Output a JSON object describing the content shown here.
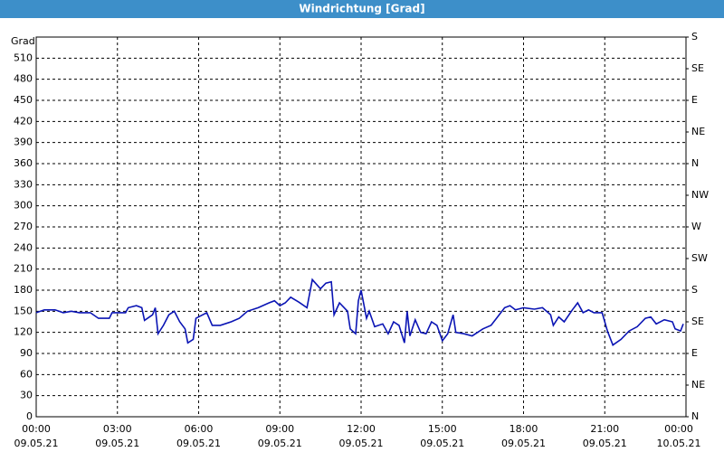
{
  "chart_data": {
    "type": "line",
    "title": "Windrichtung [Grad]",
    "ylabel": "Grad",
    "x": [
      0,
      0.3,
      0.7,
      1,
      1.3,
      1.6,
      2,
      2.3,
      2.7,
      2.8,
      3.1,
      3.3,
      3.4,
      3.7,
      3.9,
      4.0,
      4.3,
      4.4,
      4.5,
      4.7,
      4.9,
      5.1,
      5.3,
      5.5,
      5.6,
      5.8,
      5.9,
      6.3,
      6.5,
      6.8,
      7.2,
      7.5,
      7.8,
      8.2,
      8.6,
      8.8,
      9.0,
      9.2,
      9.4,
      9.7,
      10.0,
      10.2,
      10.5,
      10.7,
      10.9,
      11.0,
      11.2,
      11.5,
      11.6,
      11.8,
      11.9,
      12.0,
      12.2,
      12.3,
      12.5,
      12.8,
      13.0,
      13.2,
      13.4,
      13.6,
      13.7,
      13.8,
      14.0,
      14.2,
      14.4,
      14.6,
      14.8,
      15.0,
      15.2,
      15.4,
      15.5,
      15.8,
      16.1,
      16.5,
      16.8,
      17.0,
      17.3,
      17.5,
      17.7,
      18.0,
      18.4,
      18.7,
      19.0,
      19.1,
      19.3,
      19.5,
      19.8,
      20.0,
      20.2,
      20.4,
      20.6,
      20.9,
      21.1,
      21.3,
      21.6,
      21.9,
      22.2,
      22.5,
      22.7,
      22.9,
      23.2,
      23.5,
      23.6,
      23.8,
      23.9
    ],
    "series": [
      {
        "name": "Windrichtung",
        "color": "#0a14b4",
        "values": [
          148,
          152,
          152,
          148,
          150,
          148,
          148,
          140,
          140,
          148,
          148,
          148,
          155,
          158,
          155,
          137,
          145,
          155,
          118,
          130,
          145,
          150,
          135,
          125,
          105,
          110,
          140,
          148,
          130,
          130,
          135,
          140,
          150,
          155,
          162,
          165,
          158,
          162,
          170,
          163,
          155,
          195,
          182,
          190,
          192,
          145,
          162,
          150,
          125,
          118,
          165,
          180,
          140,
          150,
          128,
          132,
          118,
          135,
          130,
          105,
          150,
          115,
          138,
          120,
          118,
          135,
          130,
          108,
          118,
          145,
          120,
          118,
          115,
          125,
          130,
          140,
          155,
          158,
          152,
          155,
          153,
          155,
          145,
          130,
          142,
          135,
          152,
          162,
          148,
          152,
          148,
          148,
          122,
          102,
          110,
          122,
          128,
          140,
          142,
          132,
          138,
          135,
          125,
          122,
          132
        ]
      }
    ],
    "xlim": [
      0,
      24
    ],
    "xticks": [
      {
        "value": 0,
        "label": "00:00"
      },
      {
        "value": 3,
        "label": "03:00"
      },
      {
        "value": 6,
        "label": "06:00"
      },
      {
        "value": 9,
        "label": "09:00"
      },
      {
        "value": 12,
        "label": "12:00"
      },
      {
        "value": 15,
        "label": "15:00"
      },
      {
        "value": 18,
        "label": "18:00"
      },
      {
        "value": 21,
        "label": "21:00"
      },
      {
        "value": 24,
        "label": "00:00"
      }
    ],
    "xtick_dates": [
      "09.05.21",
      "09.05.21",
      "09.05.21",
      "09.05.21",
      "09.05.21",
      "09.05.21",
      "09.05.21",
      "09.05.21",
      "10.05.21"
    ],
    "ylim": [
      0,
      540
    ],
    "yticks": [
      0,
      30,
      60,
      90,
      120,
      150,
      180,
      210,
      240,
      270,
      300,
      330,
      360,
      390,
      420,
      450,
      480,
      510
    ],
    "y2lim": [
      0,
      540
    ],
    "y2ticks": [
      {
        "value": 0,
        "label": "N"
      },
      {
        "value": 45,
        "label": "NE"
      },
      {
        "value": 90,
        "label": "E"
      },
      {
        "value": 135,
        "label": "SE"
      },
      {
        "value": 180,
        "label": "S"
      },
      {
        "value": 225,
        "label": "SW"
      },
      {
        "value": 270,
        "label": "W"
      },
      {
        "value": 315,
        "label": "NW"
      },
      {
        "value": 360,
        "label": "N"
      },
      {
        "value": 405,
        "label": "NE"
      },
      {
        "value": 450,
        "label": "E"
      },
      {
        "value": 495,
        "label": "SE"
      },
      {
        "value": 540,
        "label": "S"
      }
    ],
    "grid": true
  }
}
